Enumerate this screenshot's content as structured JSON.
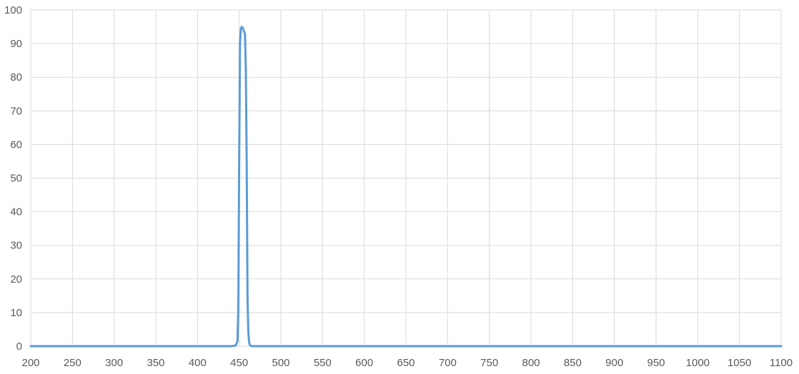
{
  "chart_data": {
    "type": "line",
    "title": "",
    "xlabel": "",
    "ylabel": "",
    "xlim": [
      200,
      1100
    ],
    "ylim": [
      0,
      100
    ],
    "x_ticks": [
      200,
      250,
      300,
      350,
      400,
      450,
      500,
      550,
      600,
      650,
      700,
      750,
      800,
      850,
      900,
      950,
      1000,
      1050,
      1100
    ],
    "y_ticks": [
      0,
      10,
      20,
      30,
      40,
      50,
      60,
      70,
      80,
      90,
      100
    ],
    "grid": true,
    "line_color": "#5b9bd5",
    "series": [
      {
        "x": [
          200,
          440,
          446,
          448,
          449,
          450,
          451,
          452,
          453,
          454,
          455,
          456,
          457,
          458,
          459,
          460,
          461,
          462,
          463,
          465,
          470,
          500,
          600,
          800,
          1000,
          1100
        ],
        "y": [
          0,
          0,
          0.2,
          1.5,
          12,
          55,
          90,
          94.5,
          95,
          94.8,
          94.2,
          93.5,
          92.8,
          82,
          55,
          15,
          4,
          1,
          0.3,
          0,
          0,
          0,
          0,
          0,
          0,
          0
        ]
      }
    ]
  }
}
